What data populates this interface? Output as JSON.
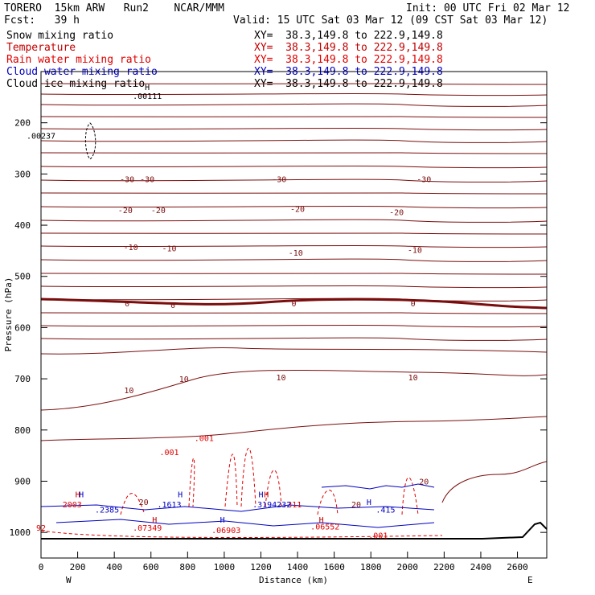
{
  "header": {
    "model": "TORERO  15km ARW   Run2    NCAR/MMM",
    "init": "Init: 00 UTC Fri 02 Mar 12",
    "fcst": "Fcst:   39 h",
    "valid": "Valid: 15 UTC Sat 03 Mar 12 (09 CST Sat 03 Mar 12)"
  },
  "fields": [
    {
      "name": "Snow mixing ratio",
      "xy": "XY=  38.3,149.8 to 222.9,149.8",
      "color": "#000000"
    },
    {
      "name": "Temperature",
      "xy": "XY=  38.3,149.8 to 222.9,149.8",
      "color": "#c00000"
    },
    {
      "name": "Rain water mixing ratio",
      "xy": "XY=  38.3,149.8 to 222.9,149.8",
      "color": "#e00000"
    },
    {
      "name": "Cloud water mixing ratio",
      "xy": "XY=  38.3,149.8 to 222.9,149.8",
      "color": "#0000c0"
    },
    {
      "name": "Cloud ice mixing ratio",
      "xy": "XY=  38.3,149.8 to 222.9,149.8",
      "color": "#000000"
    }
  ],
  "chart_data": {
    "type": "line",
    "title": "",
    "xlabel": "Distance (km)",
    "ylabel": "Pressure (hPa)",
    "xlim": [
      0,
      2760
    ],
    "ylim": [
      1050,
      100
    ],
    "x_ticks": [
      0,
      200,
      400,
      600,
      800,
      1000,
      1200,
      1400,
      1600,
      1800,
      2000,
      2200,
      2400,
      2600
    ],
    "y_ticks": [
      200,
      300,
      400,
      500,
      600,
      700,
      800,
      900,
      1000
    ],
    "left_end_label": "W",
    "right_end_label": "E",
    "temperature_labels": [
      {
        "text": "-30",
        "x": 470,
        "p": 310
      },
      {
        "text": "-30",
        "x": 580,
        "p": 310
      },
      {
        "text": "-30",
        "x": 1300,
        "p": 310
      },
      {
        "text": "-30",
        "x": 2090,
        "p": 310
      },
      {
        "text": "-20",
        "x": 460,
        "p": 370
      },
      {
        "text": "-20",
        "x": 640,
        "p": 370
      },
      {
        "text": "-20",
        "x": 1400,
        "p": 368
      },
      {
        "text": "-20",
        "x": 1940,
        "p": 374
      },
      {
        "text": "-10",
        "x": 490,
        "p": 442
      },
      {
        "text": "-10",
        "x": 700,
        "p": 445
      },
      {
        "text": "-10",
        "x": 1390,
        "p": 453
      },
      {
        "text": "-10",
        "x": 2040,
        "p": 448
      },
      {
        "text": "0",
        "x": 470,
        "p": 552
      },
      {
        "text": "0",
        "x": 720,
        "p": 555
      },
      {
        "text": "0",
        "x": 1380,
        "p": 552
      },
      {
        "text": "0",
        "x": 2030,
        "p": 552
      },
      {
        "text": "10",
        "x": 480,
        "p": 722
      },
      {
        "text": "10",
        "x": 780,
        "p": 700
      },
      {
        "text": "10",
        "x": 1310,
        "p": 697
      },
      {
        "text": "10",
        "x": 2030,
        "p": 697
      },
      {
        "text": "20",
        "x": 2090,
        "p": 900
      },
      {
        "text": "20",
        "x": 560,
        "p": 940
      },
      {
        "text": "20",
        "x": 1720,
        "p": 945
      }
    ],
    "rain_labels": [
      {
        "text": ".001",
        "x": 700,
        "p": 843
      },
      {
        "text": ".001",
        "x": 890,
        "p": 815
      },
      {
        "text": ".001",
        "x": 1840,
        "p": 1005
      },
      {
        "text": ".07349",
        "x": 580,
        "p": 990
      },
      {
        "text": ".06903",
        "x": 1010,
        "p": 995
      },
      {
        "text": ".06552",
        "x": 1550,
        "p": 988
      },
      {
        "text": "2003",
        "x": 170,
        "p": 945
      },
      {
        "text": ".311",
        "x": 1370,
        "p": 945
      },
      {
        "text": "92",
        "x": 0,
        "p": 990
      }
    ],
    "cloud_water_labels": [
      {
        "text": ".2385",
        "x": 360,
        "p": 955
      },
      {
        "text": ".1613",
        "x": 700,
        "p": 945
      },
      {
        "text": ".3194232",
        "x": 1260,
        "p": 945
      },
      {
        "text": ".415",
        "x": 1880,
        "p": 955
      }
    ],
    "cloud_ice_labels": [
      {
        "text": ".00111",
        "x": 580,
        "p": 147
      },
      {
        "text": ".00237",
        "x": 0,
        "p": 225
      }
    ],
    "max_markers": [
      {
        "text": "H",
        "x": 580,
        "p": 130,
        "color": "#000000"
      },
      {
        "text": "H",
        "x": 200,
        "p": 925,
        "color": "#c00000"
      },
      {
        "text": "H",
        "x": 220,
        "p": 925,
        "color": "#0000c0"
      },
      {
        "text": "H",
        "x": 760,
        "p": 925,
        "color": "#0000c0"
      },
      {
        "text": "H",
        "x": 1200,
        "p": 925,
        "color": "#0000c0"
      },
      {
        "text": "H",
        "x": 1230,
        "p": 925,
        "color": "#c00000"
      },
      {
        "text": "H",
        "x": 1790,
        "p": 940,
        "color": "#0000c0"
      },
      {
        "text": "H",
        "x": 620,
        "p": 975,
        "color": "#c00000"
      },
      {
        "text": "H",
        "x": 990,
        "p": 975,
        "color": "#0000c0"
      },
      {
        "text": "H",
        "x": 1530,
        "p": 975,
        "color": "#c00000"
      }
    ]
  }
}
